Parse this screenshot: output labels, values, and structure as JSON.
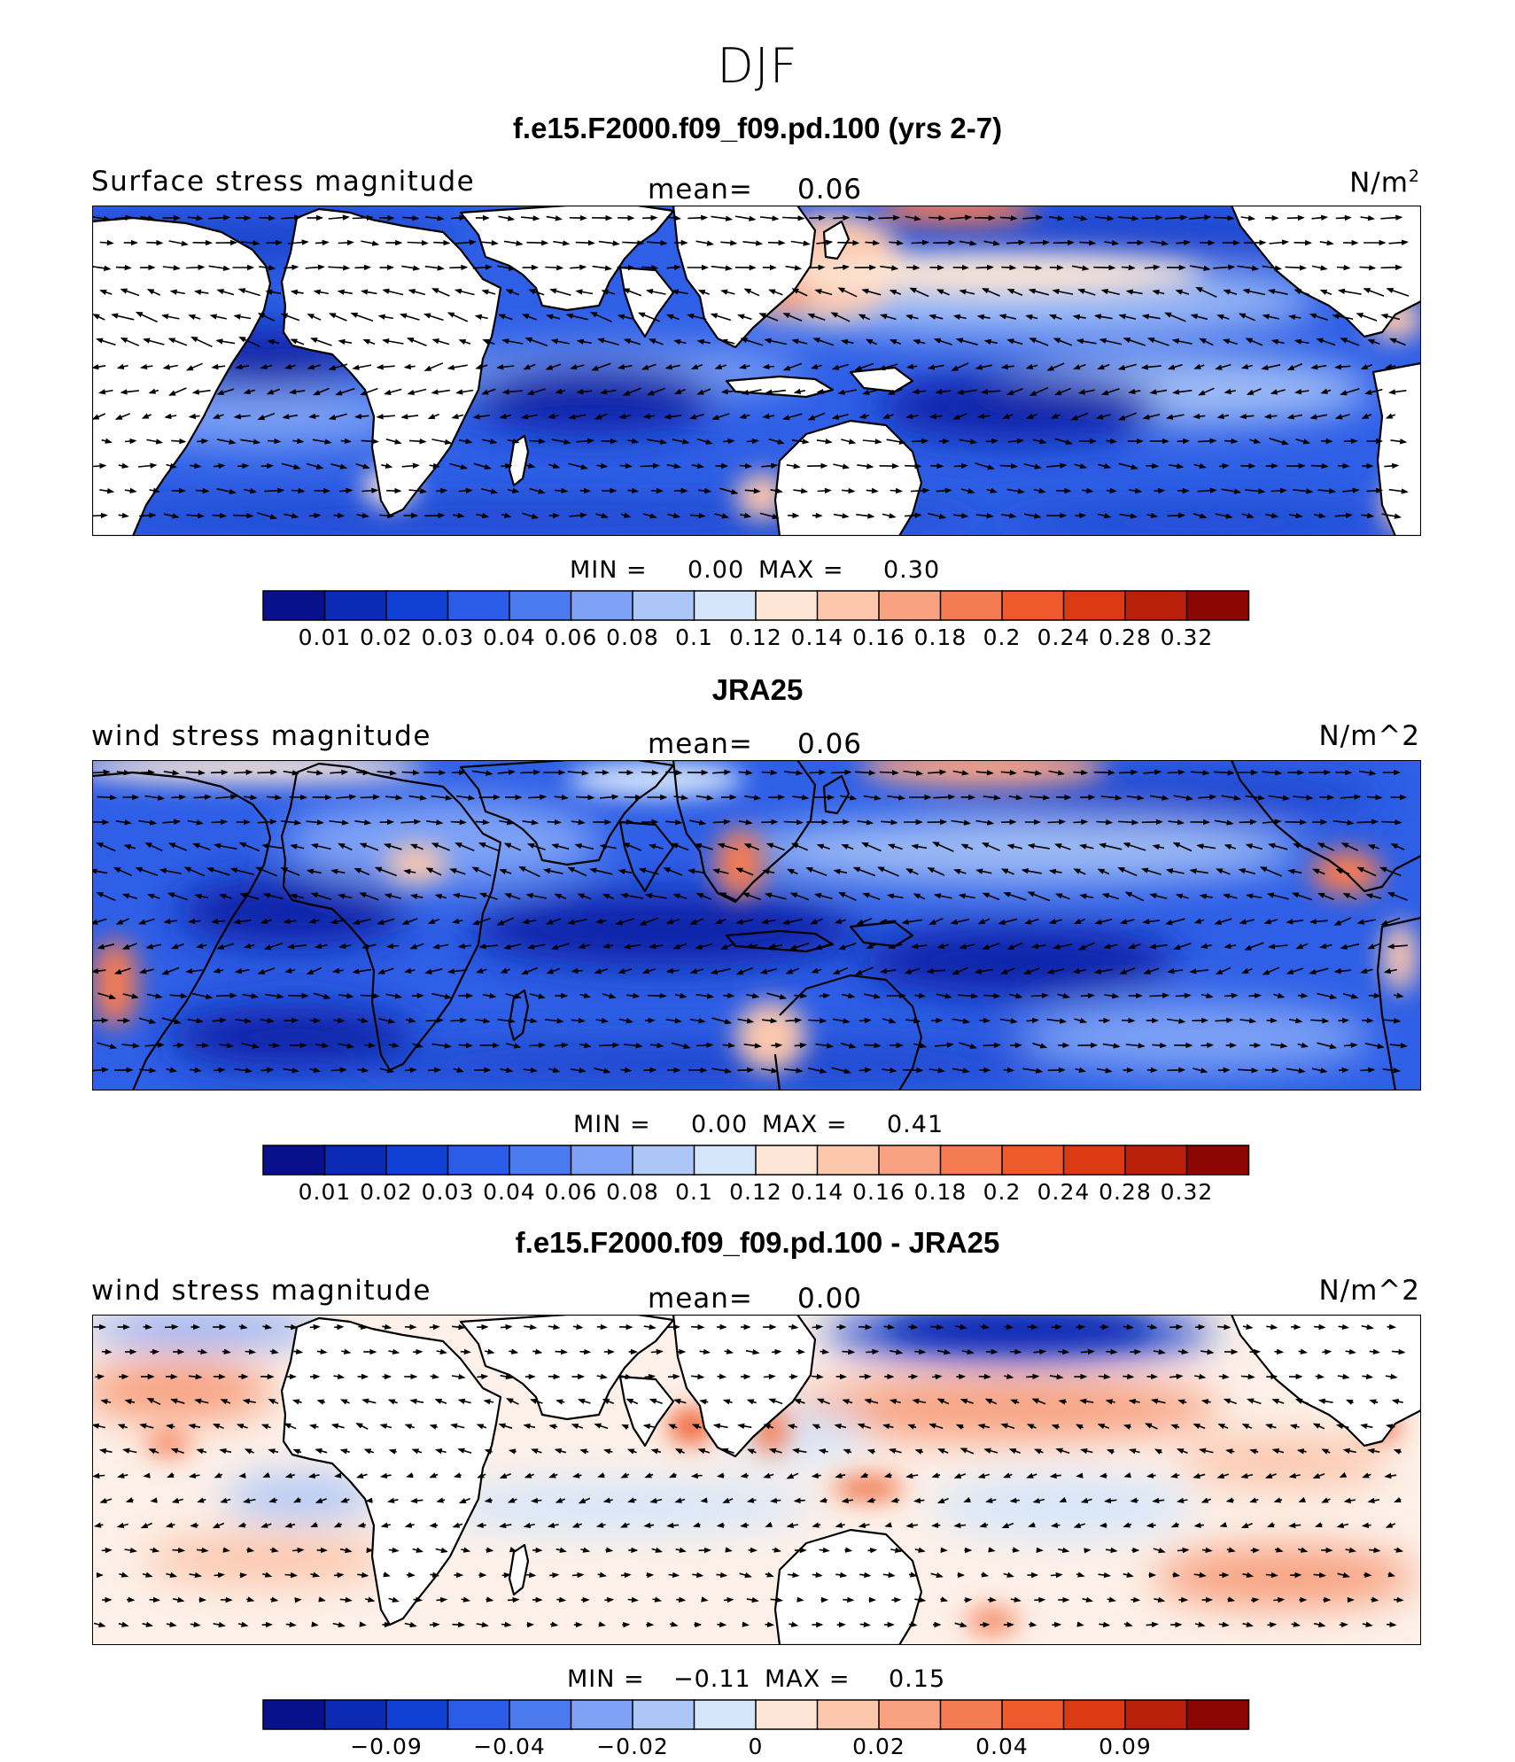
{
  "figure": {
    "title": "DJF"
  },
  "panels": [
    {
      "title": "f.e15.F2000.f09_f09.pd.100 (yrs 2-7)",
      "left_label": "Surface stress magnitude",
      "mean_label": "mean=",
      "mean_value": "0.06",
      "units_base": "N/m",
      "units_sup": "2",
      "min_label": "MIN =",
      "min_value": "0.00",
      "max_label": "MAX =",
      "max_value": "0.30",
      "field_type": "positive",
      "colorbar": {
        "colors": [
          "#08108c",
          "#0b2bb4",
          "#1040d4",
          "#2a5ce8",
          "#4a7cf0",
          "#7ea2f6",
          "#acc6f8",
          "#d6e6fa",
          "#fde6d6",
          "#fcc7ad",
          "#f8a281",
          "#f57c52",
          "#ee5a2c",
          "#dc3a12",
          "#b8200a",
          "#8c0604"
        ],
        "tick_labels": [
          "0.01",
          "0.02",
          "0.03",
          "0.04",
          "0.06",
          "0.08",
          "0.1",
          "0.12",
          "0.14",
          "0.16",
          "0.18",
          "0.2",
          "0.24",
          "0.28",
          "0.32"
        ]
      }
    },
    {
      "title": "JRA25",
      "left_label": "wind stress magnitude",
      "mean_label": "mean=",
      "mean_value": "0.06",
      "units_base": "N/m^2",
      "units_sup": "",
      "min_label": "MIN =",
      "min_value": "0.00",
      "max_label": "MAX =",
      "max_value": "0.41",
      "field_type": "positive",
      "colorbar": {
        "colors": [
          "#08108c",
          "#0b2bb4",
          "#1040d4",
          "#2a5ce8",
          "#4a7cf0",
          "#7ea2f6",
          "#acc6f8",
          "#d6e6fa",
          "#fde6d6",
          "#fcc7ad",
          "#f8a281",
          "#f57c52",
          "#ee5a2c",
          "#dc3a12",
          "#b8200a",
          "#8c0604"
        ],
        "tick_labels": [
          "0.01",
          "0.02",
          "0.03",
          "0.04",
          "0.06",
          "0.08",
          "0.1",
          "0.12",
          "0.14",
          "0.16",
          "0.18",
          "0.2",
          "0.24",
          "0.28",
          "0.32"
        ]
      }
    },
    {
      "title": "f.e15.F2000.f09_f09.pd.100 - JRA25",
      "left_label": "wind stress magnitude",
      "mean_label": "mean=",
      "mean_value": "0.00",
      "units_base": "N/m^2",
      "units_sup": "",
      "min_label": "MIN =",
      "min_value": "−0.11",
      "max_label": "MAX =",
      "max_value": "0.15",
      "field_type": "difference",
      "colorbar": {
        "colors": [
          "#08108c",
          "#0b2bb4",
          "#1040d4",
          "#2a5ce8",
          "#4a7cf0",
          "#7ea2f6",
          "#acc6f8",
          "#d6e6fa",
          "#fde6d6",
          "#fcc7ad",
          "#f8a281",
          "#f57c52",
          "#ee5a2c",
          "#dc3a12",
          "#b8200a",
          "#8c0604"
        ],
        "tick_labels": [
          "−0.09",
          "−0.04",
          "−0.02",
          "0",
          "0.02",
          "0.04",
          "0.09"
        ]
      }
    }
  ]
}
